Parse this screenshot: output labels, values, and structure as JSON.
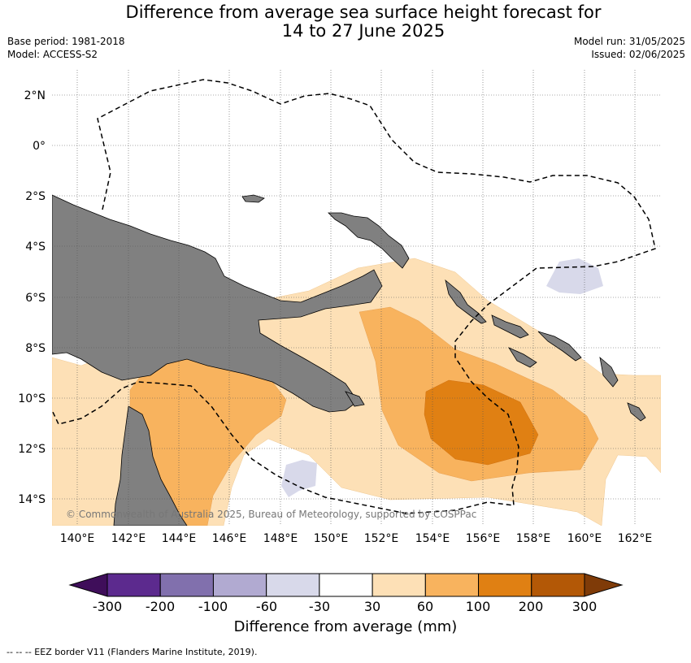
{
  "title": {
    "line1": "Difference from average sea surface height forecast for",
    "line2": "14 to 27 June 2025"
  },
  "meta": {
    "base_period": "Base period: 1981-2018",
    "model": "Model: ACCESS-S2",
    "model_run": "Model run: 31/05/2025",
    "issued": "Issued: 02/06/2025"
  },
  "map": {
    "lat_labels": [
      "2°N",
      "0°",
      "2°S",
      "4°S",
      "6°S",
      "8°S",
      "10°S",
      "12°S",
      "14°S"
    ],
    "lon_labels": [
      "140°E",
      "142°E",
      "144°E",
      "146°E",
      "148°E",
      "150°E",
      "152°E",
      "154°E",
      "156°E",
      "158°E",
      "160°E",
      "162°E"
    ],
    "copyright": "© Commonwealth of Australia 2025, Bureau of Meteorology, supported by COSPPac",
    "colors": {
      "land": "#808080",
      "c30_60": "#fde0b6",
      "c60_100": "#f8b35e",
      "c100_200": "#e08013",
      "cneg60_30": "#d8d9ea"
    }
  },
  "colorbar": {
    "title": "Difference from average (mm)",
    "ticks": [
      "-300",
      "-200",
      "-100",
      "-60",
      "-30",
      "30",
      "60",
      "100",
      "200",
      "300"
    ],
    "colors": [
      "#3f0e5a",
      "#5c2a8e",
      "#8170ad",
      "#b1aad1",
      "#d8d9ea",
      "#ffffff",
      "#fde0b6",
      "#f8b35e",
      "#e08013",
      "#b35806",
      "#7f3b08"
    ]
  },
  "footer": "--  --  -- EEZ border V11 (Flanders Marine Institute, 2019)."
}
